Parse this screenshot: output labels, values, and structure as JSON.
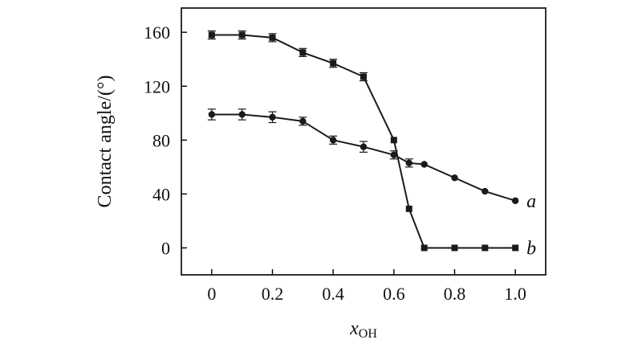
{
  "chart_data": {
    "type": "line",
    "title": "",
    "xlabel": "x",
    "xlabel_sub": "OH",
    "ylabel": "Contact angle/(°)",
    "xlim": [
      -0.1,
      1.1
    ],
    "ylim": [
      -20,
      178
    ],
    "xticks": [
      0,
      0.2,
      0.4,
      0.6,
      0.8,
      1.0
    ],
    "xtick_labels": [
      "0",
      "0.2",
      "0.4",
      "0.6",
      "0.8",
      "1.0"
    ],
    "yticks": [
      0,
      40,
      80,
      120,
      160
    ],
    "ytick_labels": [
      "0",
      "40",
      "80",
      "120",
      "160"
    ],
    "grid": false,
    "series": [
      {
        "name": "b",
        "marker": "square",
        "x": [
          0,
          0.1,
          0.2,
          0.3,
          0.4,
          0.5,
          0.6,
          0.65,
          0.7,
          0.8,
          0.9,
          1.0
        ],
        "y": [
          158,
          158,
          156,
          145,
          137,
          127,
          80,
          29,
          0,
          0,
          0,
          0
        ],
        "error": [
          3,
          3,
          3,
          3,
          3,
          3,
          0,
          0,
          0,
          0,
          0,
          0
        ]
      },
      {
        "name": "a",
        "marker": "circle",
        "x": [
          0,
          0.1,
          0.2,
          0.3,
          0.4,
          0.5,
          0.6,
          0.65,
          0.7,
          0.8,
          0.9,
          1.0
        ],
        "y": [
          99,
          99,
          97,
          94,
          80,
          75,
          69,
          63,
          62,
          52,
          42,
          35
        ],
        "error": [
          4,
          4,
          4,
          3,
          3,
          4,
          3,
          3,
          0,
          0,
          0,
          0
        ]
      }
    ]
  }
}
